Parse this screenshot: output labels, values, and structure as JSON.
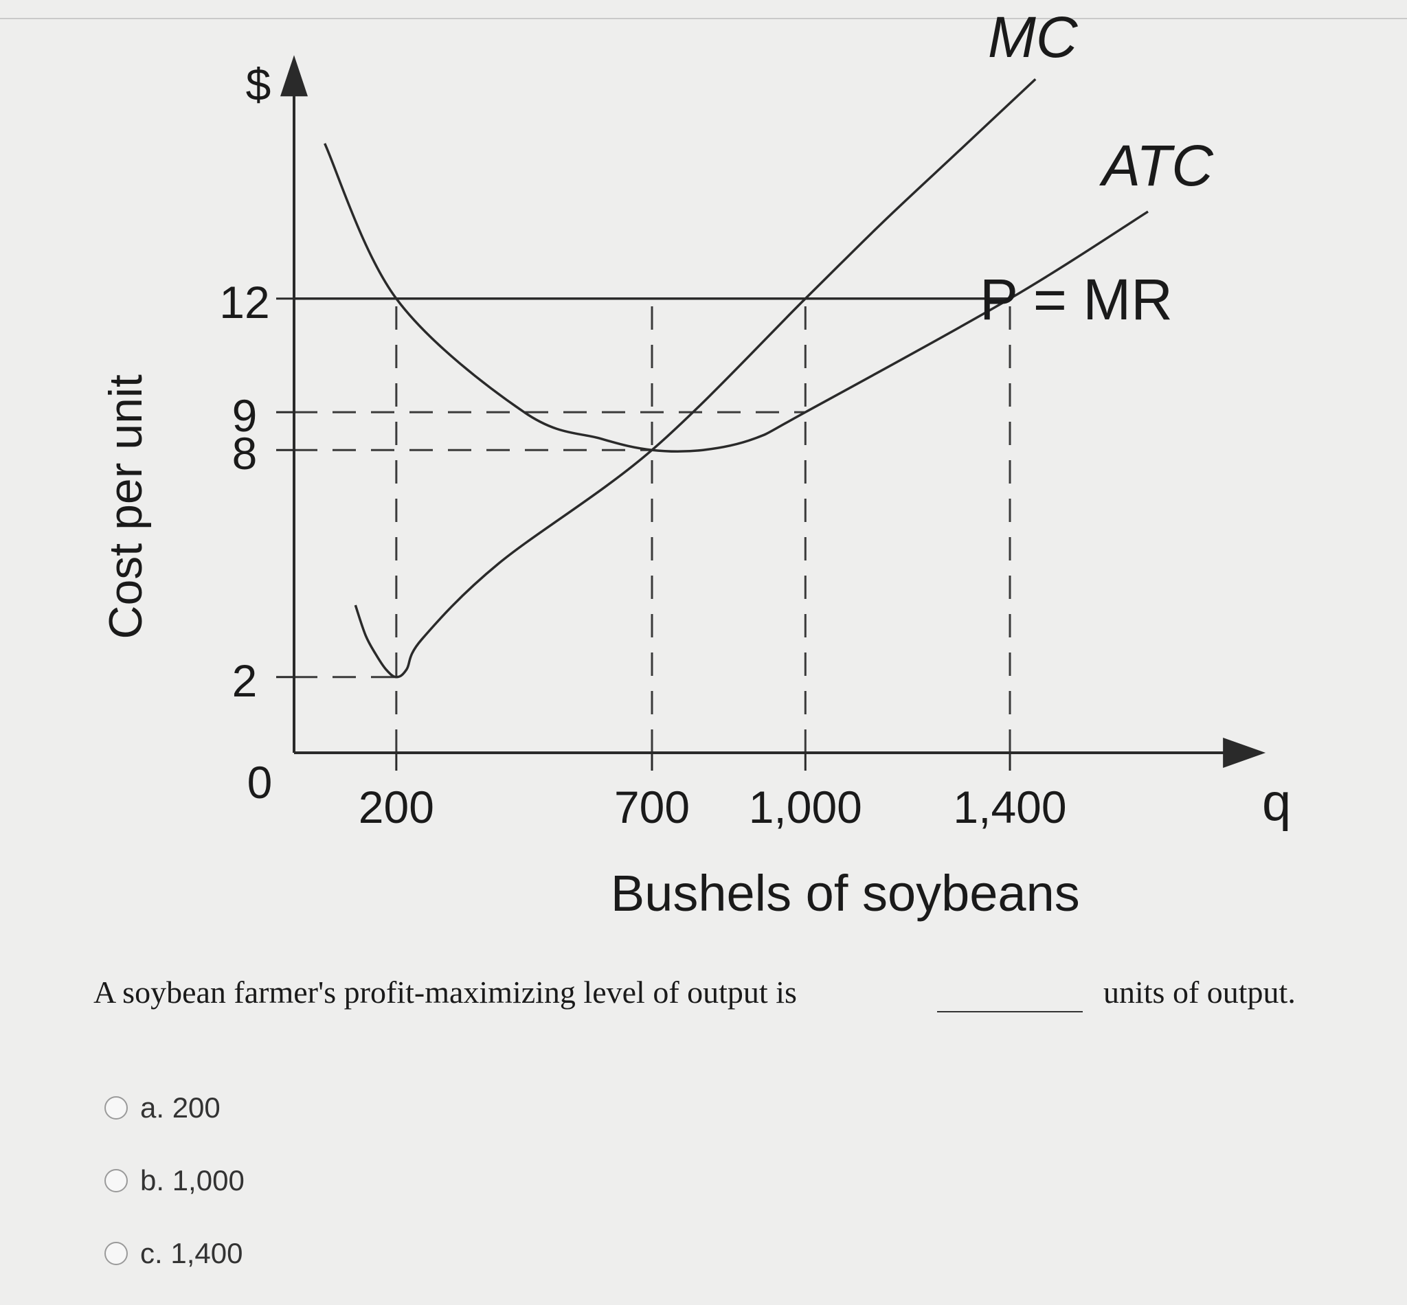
{
  "chart_data": {
    "type": "line",
    "ylabel": "Cost per unit",
    "y_unit_label": "$",
    "xlabel": "Bushels of soybeans",
    "x_unit_label": "q",
    "origin_label": "0",
    "x_ticks": [
      200,
      700,
      1000,
      1400
    ],
    "x_tick_labels": [
      "200",
      "700",
      "1,000",
      "1,400"
    ],
    "y_ticks": [
      2,
      8,
      9,
      12
    ],
    "y_tick_labels": [
      "2",
      "8",
      "9",
      "12"
    ],
    "xlim": [
      0,
      1900
    ],
    "ylim": [
      0,
      18
    ],
    "series": [
      {
        "name": "MC",
        "x": [
          120,
          140,
          160,
          180,
          200,
          220,
          250,
          400,
          700,
          1000,
          1150,
          1300,
          1450
        ],
        "y": [
          3.9,
          3.1,
          2.6,
          2.2,
          2.0,
          2.2,
          3.0,
          5.0,
          8.0,
          12.0,
          14.0,
          15.9,
          17.8
        ]
      },
      {
        "name": "ATC",
        "x": [
          60,
          200,
          450,
          600,
          700,
          800,
          900,
          1000,
          1400,
          1670
        ],
        "y": [
          16.1,
          12.0,
          9.0,
          8.3,
          8.0,
          8.0,
          8.3,
          9.0,
          12.0,
          14.3
        ]
      },
      {
        "name": "P = MR",
        "x": [
          0,
          1400
        ],
        "y": [
          12,
          12
        ]
      }
    ],
    "grid": false
  },
  "question": {
    "text_before": "A soybean farmer's profit-maximizing level of output is",
    "text_after": "units of output."
  },
  "options": [
    {
      "label": "a. 200"
    },
    {
      "label": "b. 1,000"
    },
    {
      "label": "c. 1,400"
    }
  ]
}
